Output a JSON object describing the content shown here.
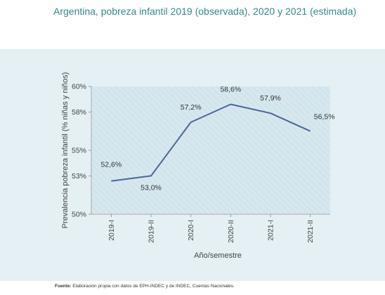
{
  "title": "Argentina, pobreza infantil 2019 (observada), 2020 y 2021 (estimada)",
  "source": {
    "label": "Fuente:",
    "text": "Elaboración propia con datos de EPH-INDEC y de INDEC, Cuentas Nacionales."
  },
  "colors": {
    "title": "#2f8a8a",
    "panel": "#e4f0f3",
    "plot_area": "#d6e8ee",
    "line": "#4a6797"
  },
  "chart_data": {
    "type": "line",
    "title": "Argentina, pobreza infantil 2019 (observada), 2020 y 2021 (estimada)",
    "xlabel": "Año/semestre",
    "ylabel": "Prevalencia pobreza infantil (% niñas y niños)",
    "categories": [
      "2019-I",
      "2019-II",
      "2020-I",
      "2020-II",
      "2021-I",
      "2021-II"
    ],
    "series": [
      {
        "values": [
          52.6,
          53.0,
          57.2,
          58.6,
          57.9,
          56.5
        ]
      }
    ],
    "data_labels": [
      "52,6%",
      "53,0%",
      "57,2%",
      "58,6%",
      "57,9%",
      "56,5%"
    ],
    "ylim": [
      50,
      60
    ],
    "yticks": [
      50,
      53,
      55,
      58,
      60
    ],
    "ytick_labels": [
      "50%",
      "53%",
      "55%",
      "58%",
      "60%"
    ],
    "grid": false,
    "legend": "none",
    "plot_area_pattern": "diagonal-hatch"
  }
}
